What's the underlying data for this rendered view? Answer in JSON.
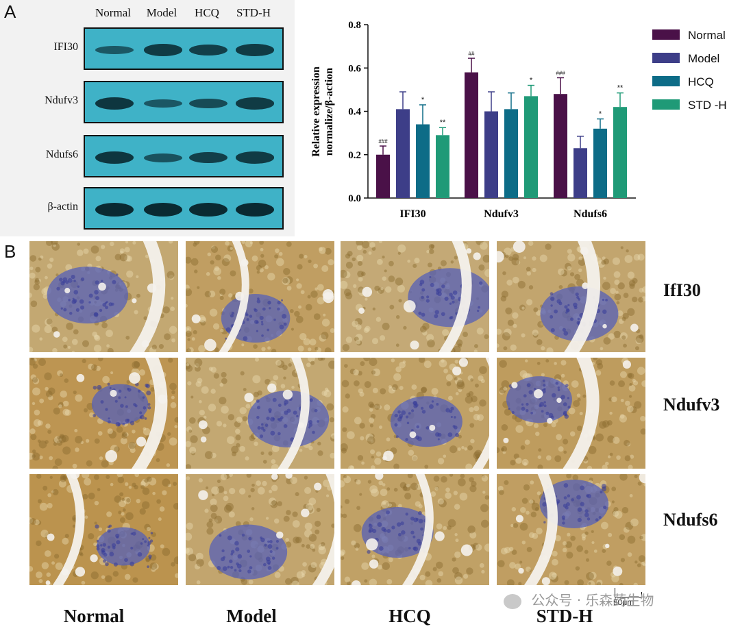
{
  "panels": {
    "a": "A",
    "b": "B"
  },
  "western_blot": {
    "lanes": [
      "Normal",
      "Model",
      "HCQ",
      "STD-H"
    ],
    "rows": [
      {
        "label": "IFI30",
        "intensity": [
          0.45,
          0.8,
          0.75,
          0.8
        ]
      },
      {
        "label": "Ndufv3",
        "intensity": [
          0.85,
          0.45,
          0.6,
          0.8
        ]
      },
      {
        "label": "Ndufs6",
        "intensity": [
          0.85,
          0.5,
          0.75,
          0.8
        ]
      },
      {
        "label": "β-actin",
        "intensity": [
          1.0,
          1.0,
          1.0,
          1.0
        ]
      }
    ],
    "colors": {
      "membrane": "#3fb2c7",
      "band": "#0a2a32"
    }
  },
  "chart_data": {
    "type": "bar",
    "ylabel": "Relative expression normalize/β-action",
    "ylabel_lines": [
      "Relative expression",
      "normalize/β-action"
    ],
    "categories": [
      "IFI30",
      "Ndufv3",
      "Ndufs6"
    ],
    "ylim": [
      0,
      0.8
    ],
    "yticks": [
      "0.0",
      "0.2",
      "0.4",
      "0.6",
      "0.8"
    ],
    "legend_position": "right",
    "series": [
      {
        "name": "Normal",
        "color": "#4a1148",
        "values": [
          0.2,
          0.58,
          0.48
        ],
        "errors": [
          0.04,
          0.065,
          0.075
        ],
        "marks": [
          "###",
          "##",
          "###"
        ]
      },
      {
        "name": "Model",
        "color": "#3d3e88",
        "values": [
          0.41,
          0.4,
          0.23
        ],
        "errors": [
          0.08,
          0.09,
          0.055
        ],
        "marks": [
          "",
          "",
          ""
        ]
      },
      {
        "name": "HCQ",
        "color": "#0d6c87",
        "values": [
          0.34,
          0.41,
          0.32
        ],
        "errors": [
          0.09,
          0.075,
          0.045
        ],
        "marks": [
          "*",
          "",
          "*"
        ]
      },
      {
        "name": "STD -H",
        "color": "#1f9a77",
        "values": [
          0.29,
          0.47,
          0.42
        ],
        "errors": [
          0.035,
          0.05,
          0.065
        ],
        "marks": [
          "**",
          "*",
          "**"
        ]
      }
    ]
  },
  "ihc": {
    "columns": [
      "Normal",
      "Model",
      "HCQ",
      "STD-H"
    ],
    "rows": [
      "IfI30",
      "Ndufv3",
      "Ndufs6"
    ],
    "scale_bar": "50μm",
    "colors": {
      "brown": "#b8893e",
      "blue": "#5560b8",
      "white": "#f4f1ec"
    }
  },
  "watermark": "公众号 · 乐森药生物"
}
